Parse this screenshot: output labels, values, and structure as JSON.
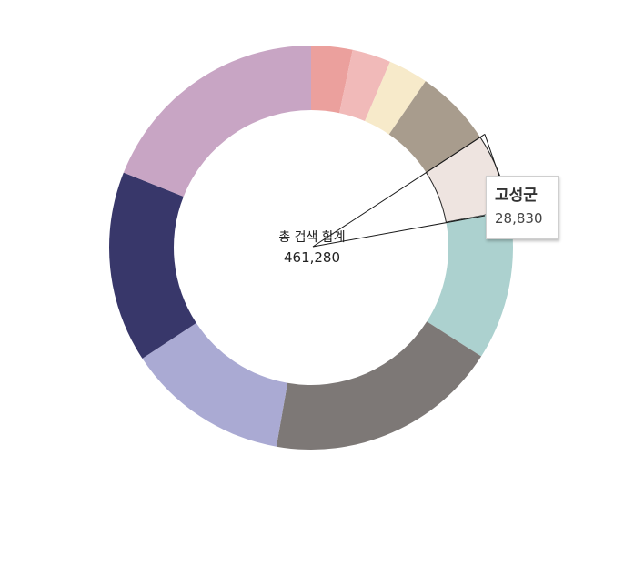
{
  "chart_data": {
    "type": "pie",
    "subtype": "donut",
    "center_title": "총 검색 합계",
    "center_value": "461,280",
    "total": 461280,
    "series": [
      {
        "name": "",
        "value": 15223,
        "color": "#EBA09D"
      },
      {
        "name": "",
        "value": 14300,
        "color": "#F1BAB9"
      },
      {
        "name": "",
        "value": 14761,
        "color": "#F7EACA"
      },
      {
        "name": "",
        "value": 28599,
        "color": "#A89C8D"
      },
      {
        "name": "고성군",
        "value": 28830,
        "color": "#EEE4E0",
        "highlighted": true
      },
      {
        "name": "",
        "value": 55354,
        "color": "#ACD1CF"
      },
      {
        "name": "",
        "value": 86260,
        "color": "#7D7876"
      },
      {
        "name": "",
        "value": 59966,
        "color": "#AAAAD3"
      },
      {
        "name": "",
        "value": 70576,
        "color": "#38376A"
      },
      {
        "name": "",
        "value": 87411,
        "color": "#C8A5C4"
      }
    ]
  },
  "tooltip": {
    "label": "고성군",
    "value": "28,830"
  }
}
